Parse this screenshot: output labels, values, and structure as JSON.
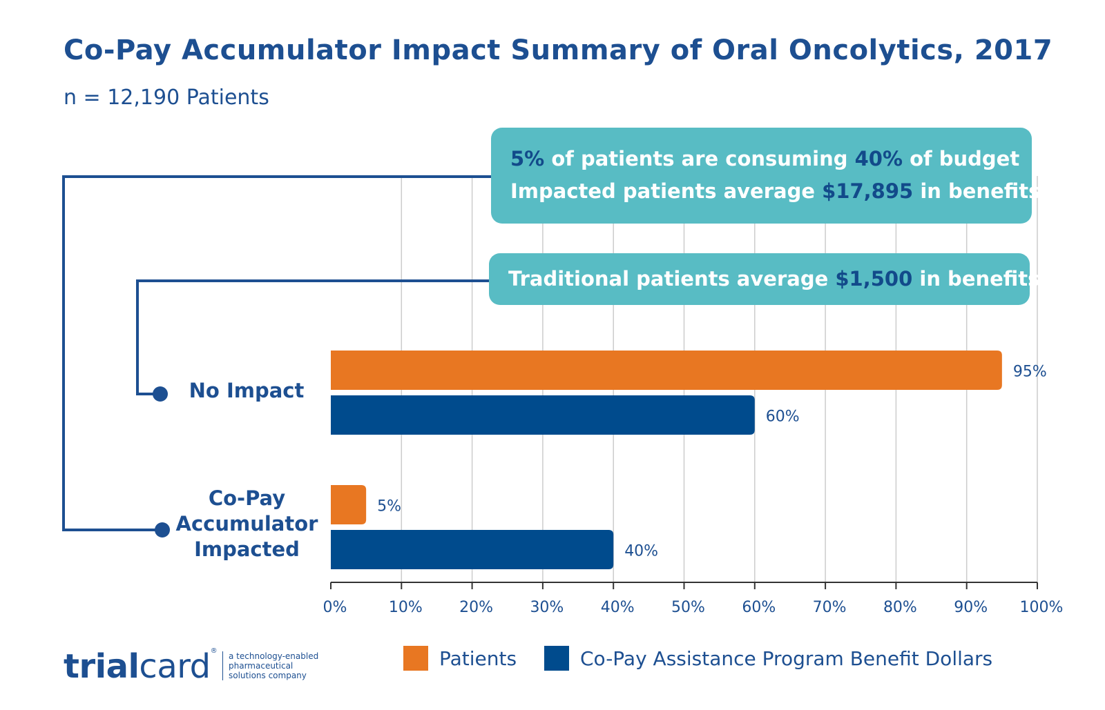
{
  "chart_data": {
    "type": "bar",
    "orientation": "horizontal",
    "title": "Co-Pay Accumulator Impact Summary of Oral Oncolytics, 2017",
    "subtitle": "n = 12,190 Patients",
    "categories": [
      "No Impact",
      "Co-Pay Accumulator Impacted"
    ],
    "category_lines": [
      [
        "No Impact"
      ],
      [
        "Co-Pay",
        "Accumulator",
        "Impacted"
      ]
    ],
    "series": [
      {
        "name": "Patients",
        "values": [
          95,
          5
        ],
        "labels": [
          "95%",
          "5%"
        ],
        "color": "#e87722"
      },
      {
        "name": "Co-Pay Assistance Program Benefit Dollars",
        "values": [
          60,
          40
        ],
        "labels": [
          "60%",
          "40%"
        ],
        "color": "#004b8d"
      }
    ],
    "xlim": [
      0,
      100
    ],
    "xticks": [
      0,
      10,
      20,
      30,
      40,
      50,
      60,
      70,
      80,
      90,
      100
    ],
    "xtick_labels": [
      "0%",
      "10%",
      "20%",
      "30%",
      "40%",
      "50%",
      "60%",
      "70%",
      "80%",
      "90%",
      "100%"
    ],
    "grid": true,
    "legend_position": "bottom"
  },
  "callouts": {
    "impacted": {
      "line1": {
        "a": "5%",
        "b": " of patients are consuming ",
        "c": "40%",
        "d": " of budget"
      },
      "line2": {
        "a": "Impacted patients average ",
        "b": "$17,895",
        "c": " in benefits"
      }
    },
    "traditional": {
      "line1": {
        "a": "Traditional patients average ",
        "b": "$1,500",
        "c": " in benefits"
      }
    }
  },
  "footer": {
    "logo_bold": "trial",
    "logo_light": "card",
    "logo_mark": "®",
    "tagline": [
      "a technology-enabled",
      "pharmaceutical",
      "solutions company"
    ]
  },
  "colors": {
    "title": "#1d4f91",
    "callout_bg": "#58bcc4",
    "callout_highlight": "#124a8a",
    "patients": "#e87722",
    "dollars": "#004b8d",
    "grid": "#cccccc"
  }
}
